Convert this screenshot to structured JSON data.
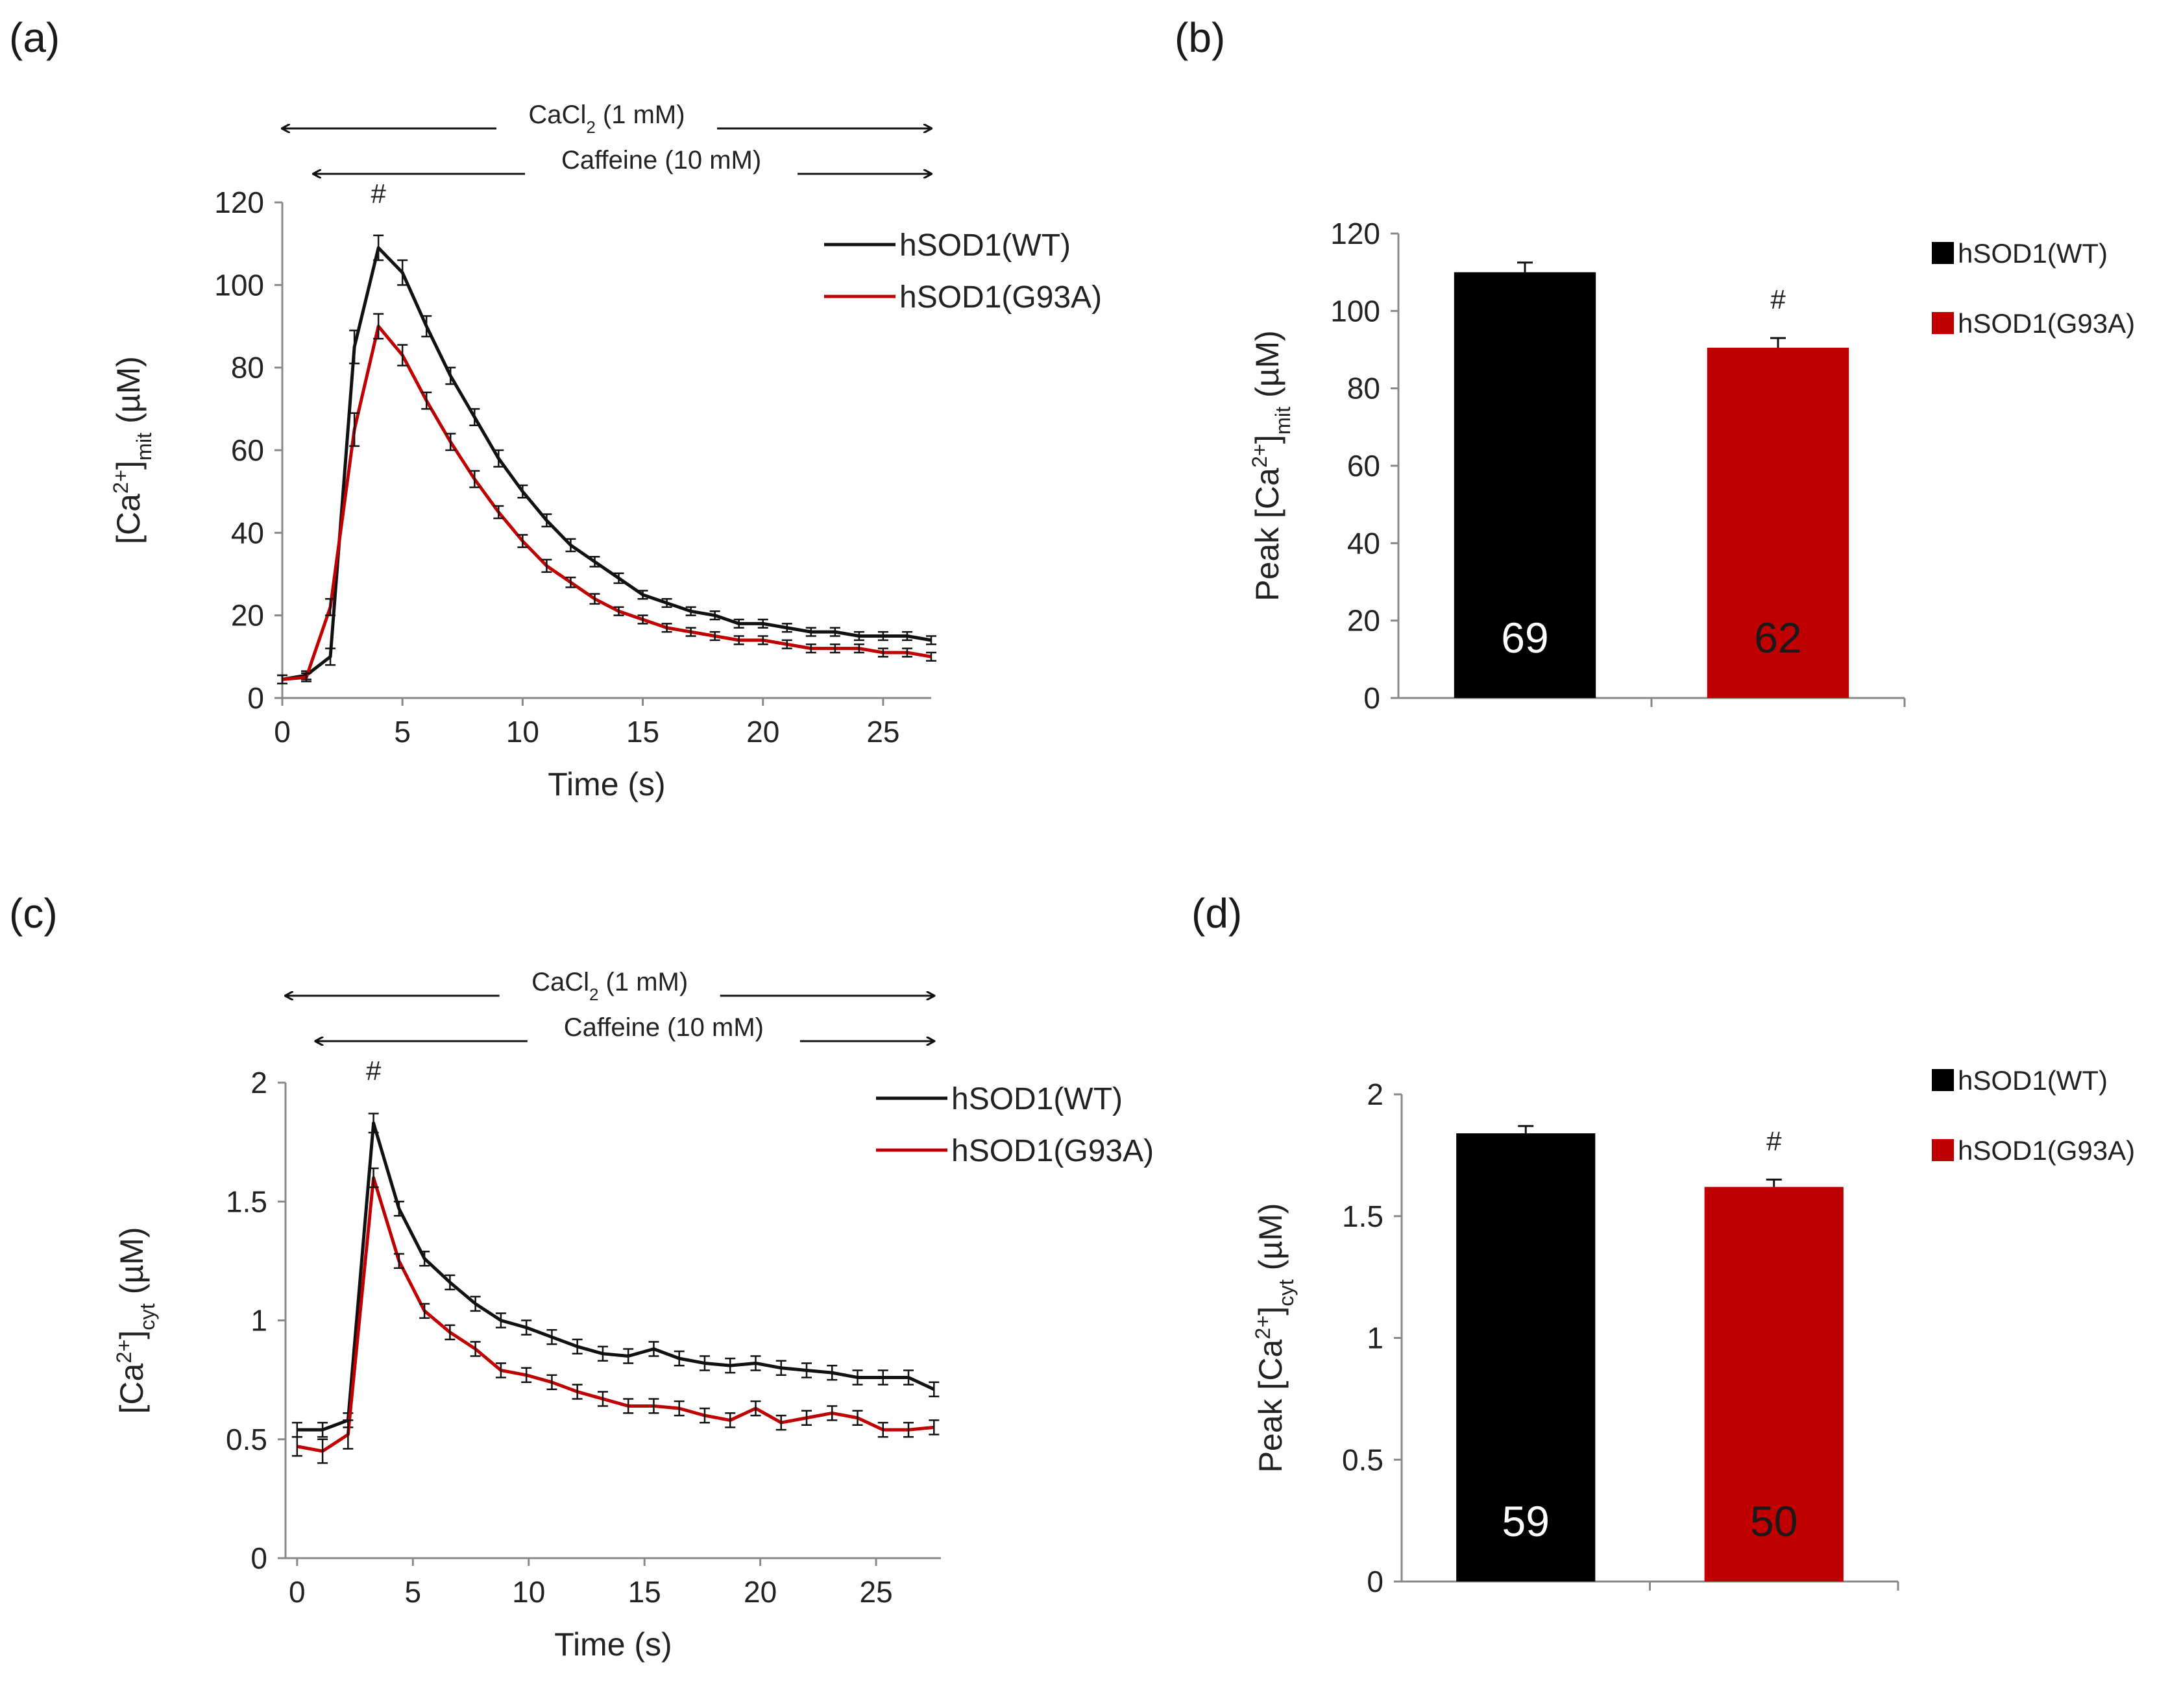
{
  "figure_labels": {
    "a": "(a)",
    "b": "(b)",
    "c": "(c)",
    "d": "(d)"
  },
  "colors": {
    "wt": "#111111",
    "g93a": "#c00000",
    "axis": "#888888"
  },
  "chart_data": [
    {
      "id": "a",
      "type": "line",
      "xlabel": "Time (s)",
      "ylabel": "[Ca2+]mit (µM)",
      "ylabel_parts": {
        "pre": "[Ca",
        "sup": "2+",
        "mid": "]",
        "sub": "mit",
        "post": " (µM)"
      },
      "xlim": [
        0,
        27
      ],
      "ylim": [
        0,
        120
      ],
      "xticks": [
        0,
        5,
        10,
        15,
        20,
        25
      ],
      "yticks": [
        0,
        20,
        40,
        60,
        80,
        100,
        120
      ],
      "treatments": [
        {
          "label": "CaCl2 (1 mM)",
          "parts": {
            "pre": "CaCl",
            "sub": "2",
            "post": " (1 mM)"
          },
          "x_start": 0,
          "x_end": 27
        },
        {
          "label": "Caffeine (10 mM)",
          "parts": {
            "pre": "Caffeine (10 mM)",
            "sub": "",
            "post": ""
          },
          "x_start": 1.3,
          "x_end": 27
        }
      ],
      "annotation": {
        "text": "#",
        "x": 4
      },
      "legend": [
        "hSOD1(WT)",
        "hSOD1(G93A)"
      ],
      "x": [
        0,
        1,
        2,
        3,
        4,
        5,
        6,
        7,
        8,
        9,
        10,
        11,
        12,
        13,
        14,
        15,
        16,
        17,
        18,
        19,
        20,
        21,
        22,
        23,
        24,
        25,
        26,
        27
      ],
      "series": [
        {
          "name": "hSOD1(WT)",
          "color": "#111111",
          "values": [
            4.5,
            5.5,
            10,
            85,
            109,
            103,
            90,
            78,
            68,
            58,
            50,
            43,
            37,
            33,
            29,
            25,
            23,
            21,
            20,
            18,
            18,
            17,
            16,
            16,
            15,
            15,
            15,
            14
          ],
          "errors": [
            1,
            1,
            2,
            4,
            3,
            3,
            2.5,
            2,
            2,
            2,
            1.5,
            1.5,
            1.5,
            1.2,
            1.2,
            1,
            1,
            1,
            1,
            1,
            1,
            1,
            1,
            1,
            1,
            1,
            1,
            1
          ]
        },
        {
          "name": "hSOD1(G93A)",
          "color": "#c00000",
          "values": [
            4.5,
            5,
            22,
            65,
            90,
            83,
            72,
            62,
            53,
            45,
            38,
            32,
            28,
            24,
            21,
            19,
            17,
            16,
            15,
            14,
            14,
            13,
            12,
            12,
            12,
            11,
            11,
            10
          ],
          "errors": [
            1,
            1,
            2,
            4,
            3,
            2.5,
            2,
            2,
            2,
            1.5,
            1.5,
            1.5,
            1.2,
            1.2,
            1,
            1,
            1,
            1,
            1,
            1,
            1,
            1,
            1,
            1,
            1,
            1,
            1,
            1
          ]
        }
      ]
    },
    {
      "id": "b",
      "type": "bar",
      "ylabel": "Peak [Ca2+]mit (µM)",
      "ylabel_parts": {
        "pre": "Peak [Ca",
        "sup": "2+",
        "mid": "]",
        "sub": "mit",
        "post": " (µM)"
      },
      "ylim": [
        0,
        120
      ],
      "yticks": [
        0,
        20,
        40,
        60,
        80,
        100,
        120
      ],
      "categories": [
        "hSOD1(WT)",
        "hSOD1(G93A)"
      ],
      "values": [
        110,
        90.5
      ],
      "errors": [
        2.5,
        2.5
      ],
      "n_labels": [
        "69",
        "62"
      ],
      "n_label_colors": [
        "#ffffff",
        "#1a1a1a"
      ],
      "bar_colors": [
        "#000000",
        "#c00000"
      ],
      "annotation": {
        "text": "#",
        "bar": 1
      },
      "legend": [
        "hSOD1(WT)",
        "hSOD1(G93A)"
      ]
    },
    {
      "id": "c",
      "type": "line",
      "xlabel": "Time (s)",
      "ylabel": "[Ca2+]cyt (µM)",
      "ylabel_parts": {
        "pre": "[Ca",
        "sup": "2+",
        "mid": "]",
        "sub": "cyt",
        "post": " (µM)"
      },
      "xlim": [
        -0.5,
        27.8
      ],
      "ylim": [
        0,
        2
      ],
      "xticks": [
        0,
        5,
        10,
        15,
        20,
        25
      ],
      "ytick_labels": [
        "0",
        "0.5",
        "1",
        "1.5",
        "2"
      ],
      "yticks": [
        0,
        0.5,
        1,
        1.5,
        2
      ],
      "treatments": [
        {
          "label": "CaCl2 (1 mM)",
          "parts": {
            "pre": "CaCl",
            "sub": "2",
            "post": " (1 mM)"
          },
          "x_start": -0.5,
          "x_end": 27.5
        },
        {
          "label": "Caffeine (10 mM)",
          "parts": {
            "pre": "Caffeine (10 mM)",
            "sub": "",
            "post": ""
          },
          "x_start": 0.8,
          "x_end": 27.5
        }
      ],
      "annotation": {
        "text": "#",
        "x": 3.3
      },
      "legend": [
        "hSOD1(WT)",
        "hSOD1(G93A)"
      ],
      "x": [
        0,
        1.1,
        2.2,
        3.3,
        4.4,
        5.5,
        6.6,
        7.7,
        8.8,
        9.9,
        11,
        12.1,
        13.2,
        14.3,
        15.4,
        16.5,
        17.6,
        18.7,
        19.8,
        20.9,
        22,
        23.1,
        24.2,
        25.3,
        26.4,
        27.5
      ],
      "series": [
        {
          "name": "hSOD1(WT)",
          "color": "#111111",
          "values": [
            0.54,
            0.54,
            0.58,
            1.83,
            1.47,
            1.26,
            1.16,
            1.07,
            1.0,
            0.97,
            0.93,
            0.89,
            0.86,
            0.85,
            0.88,
            0.84,
            0.82,
            0.81,
            0.82,
            0.8,
            0.79,
            0.78,
            0.76,
            0.76,
            0.76,
            0.71
          ],
          "errors": [
            0.03,
            0.03,
            0.03,
            0.04,
            0.03,
            0.03,
            0.03,
            0.03,
            0.03,
            0.03,
            0.03,
            0.03,
            0.03,
            0.03,
            0.03,
            0.03,
            0.03,
            0.03,
            0.03,
            0.03,
            0.03,
            0.03,
            0.03,
            0.03,
            0.03,
            0.03
          ]
        },
        {
          "name": "hSOD1(G93A)",
          "color": "#c00000",
          "values": [
            0.47,
            0.45,
            0.52,
            1.6,
            1.25,
            1.04,
            0.95,
            0.88,
            0.79,
            0.77,
            0.74,
            0.7,
            0.67,
            0.64,
            0.64,
            0.63,
            0.6,
            0.58,
            0.63,
            0.57,
            0.59,
            0.61,
            0.59,
            0.54,
            0.54,
            0.55
          ],
          "errors": [
            0.04,
            0.05,
            0.06,
            0.04,
            0.03,
            0.03,
            0.03,
            0.03,
            0.03,
            0.03,
            0.03,
            0.03,
            0.03,
            0.03,
            0.03,
            0.03,
            0.03,
            0.03,
            0.03,
            0.03,
            0.03,
            0.03,
            0.03,
            0.03,
            0.03,
            0.03
          ]
        }
      ]
    },
    {
      "id": "d",
      "type": "bar",
      "ylabel": "Peak [Ca2+]cyt (µM)",
      "ylabel_parts": {
        "pre": "Peak [Ca",
        "sup": "2+",
        "mid": "]",
        "sub": "cyt",
        "post": " (µM)"
      },
      "ylim": [
        0,
        2
      ],
      "yticks": [
        0,
        0.5,
        1,
        1.5,
        2
      ],
      "ytick_labels": [
        "0",
        "0.5",
        "1",
        "1.5",
        "2"
      ],
      "categories": [
        "hSOD1(WT)",
        "hSOD1(G93A)"
      ],
      "values": [
        1.84,
        1.62
      ],
      "errors": [
        0.03,
        0.03
      ],
      "n_labels": [
        "59",
        "50"
      ],
      "n_label_colors": [
        "#ffffff",
        "#1a1a1a"
      ],
      "bar_colors": [
        "#000000",
        "#c00000"
      ],
      "annotation": {
        "text": "#",
        "bar": 1
      },
      "legend": [
        "hSOD1(WT)",
        "hSOD1(G93A)"
      ]
    }
  ]
}
